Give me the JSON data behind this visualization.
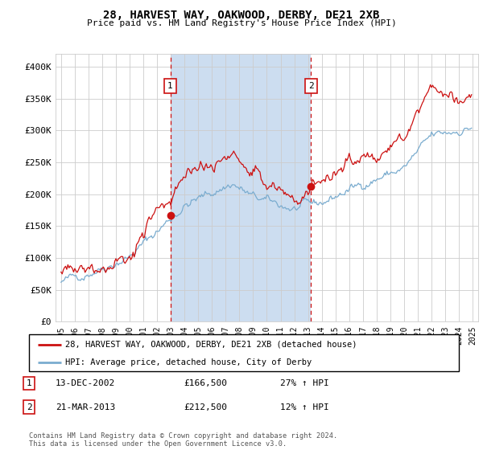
{
  "title": "28, HARVEST WAY, OAKWOOD, DERBY, DE21 2XB",
  "subtitle": "Price paid vs. HM Land Registry's House Price Index (HPI)",
  "legend_line1": "28, HARVEST WAY, OAKWOOD, DERBY, DE21 2XB (detached house)",
  "legend_line2": "HPI: Average price, detached house, City of Derby",
  "footnote": "Contains HM Land Registry data © Crown copyright and database right 2024.\nThis data is licensed under the Open Government Licence v3.0.",
  "sale1_date": "13-DEC-2002",
  "sale1_price": "£166,500",
  "sale1_hpi": "27% ↑ HPI",
  "sale1_year": 2002.96,
  "sale1_value": 166500,
  "sale2_date": "21-MAR-2013",
  "sale2_price": "£212,500",
  "sale2_hpi": "12% ↑ HPI",
  "sale2_year": 2013.22,
  "sale2_value": 212500,
  "hpi_color": "#7aaccf",
  "price_color": "#cc1111",
  "shade_color": "#ccddf0",
  "vline_color": "#cc1111",
  "grid_color": "#cccccc",
  "ylim": [
    0,
    420000
  ],
  "yticks": [
    0,
    50000,
    100000,
    150000,
    200000,
    250000,
    300000,
    350000,
    400000
  ],
  "ytick_labels": [
    "£0",
    "£50K",
    "£100K",
    "£150K",
    "£200K",
    "£250K",
    "£300K",
    "£350K",
    "£400K"
  ],
  "xlim_start": 1994.6,
  "xlim_end": 2025.4
}
